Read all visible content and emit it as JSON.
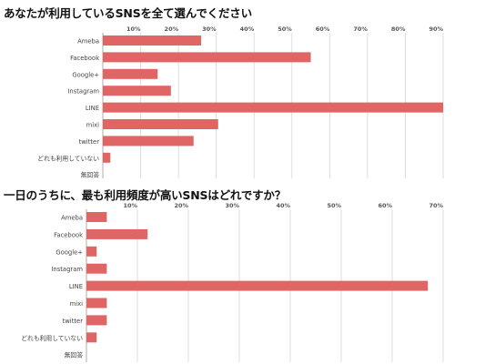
{
  "chart_data": [
    {
      "type": "bar",
      "orientation": "horizontal",
      "title": "あなたが利用しているSNSを全て選んでください",
      "categories": [
        "Ameba",
        "Facebook",
        "Google+",
        "Instagram",
        "LINE",
        "mixi",
        "twitter",
        "どれも利用していない",
        "無回答"
      ],
      "values": [
        26,
        55,
        14.5,
        18,
        90,
        30.5,
        24,
        2,
        0
      ],
      "xlim": [
        0,
        90
      ],
      "xticks": [
        "10%",
        "20%",
        "30%",
        "40%",
        "50%",
        "60%",
        "70%",
        "80%",
        "90%"
      ],
      "grid": true,
      "bar_color": "#e06666"
    },
    {
      "type": "bar",
      "orientation": "horizontal",
      "title": "一日のうちに、最も利用頻度が高いSNSはどれですか？",
      "categories": [
        "Ameba",
        "Facebook",
        "Google+",
        "Instagram",
        "LINE",
        "mixi",
        "twitter",
        "どれも利用していない",
        "無回答"
      ],
      "values": [
        4,
        12,
        2,
        4,
        67,
        4,
        4,
        2,
        0
      ],
      "xlim": [
        0,
        70
      ],
      "xticks": [
        "10%",
        "20%",
        "30%",
        "40%",
        "50%",
        "60%",
        "70%"
      ],
      "grid": true,
      "bar_color": "#e06666"
    }
  ]
}
